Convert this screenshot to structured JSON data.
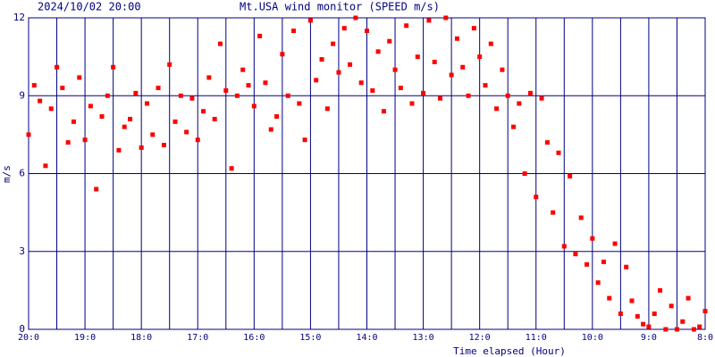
{
  "chart_data": {
    "type": "scatter",
    "date": "2024/10/02 20:00",
    "title": "Mt.USA wind monitor (SPEED m/s)",
    "y_label": "m/s",
    "x_label": "Time elapsed (Hour)",
    "color": "#ff0000",
    "grid": true,
    "xlim": [
      0,
      12
    ],
    "ylim": [
      0,
      12
    ],
    "yticks": [
      0,
      3,
      6,
      9,
      12
    ],
    "xticks": [
      {
        "value": 0,
        "label": "20:0"
      },
      {
        "value": 0.5,
        "label": null
      },
      {
        "value": 1,
        "label": "19:0"
      },
      {
        "value": 1.5,
        "label": null
      },
      {
        "value": 2,
        "label": "18:0"
      },
      {
        "value": 2.5,
        "label": null
      },
      {
        "value": 3,
        "label": "17:0"
      },
      {
        "value": 3.5,
        "label": null
      },
      {
        "value": 4,
        "label": "16:0"
      },
      {
        "value": 4.5,
        "label": null
      },
      {
        "value": 5,
        "label": "15:0"
      },
      {
        "value": 5.5,
        "label": null
      },
      {
        "value": 6,
        "label": "14:0"
      },
      {
        "value": 6.5,
        "label": null
      },
      {
        "value": 7,
        "label": "13:0"
      },
      {
        "value": 7.5,
        "label": null
      },
      {
        "value": 8,
        "label": "12:0"
      },
      {
        "value": 8.5,
        "label": null
      },
      {
        "value": 9,
        "label": "11:0"
      },
      {
        "value": 9.5,
        "label": null
      },
      {
        "value": 10,
        "label": "10:0"
      },
      {
        "value": 10.5,
        "label": null
      },
      {
        "value": 11,
        "label": "9:0"
      },
      {
        "value": 11.5,
        "label": null
      },
      {
        "value": 12,
        "label": "8:0"
      }
    ],
    "x": [
      0.0,
      0.1,
      0.2,
      0.3,
      0.4,
      0.5,
      0.6,
      0.7,
      0.8,
      0.9,
      1.0,
      1.1,
      1.2,
      1.3,
      1.4,
      1.5,
      1.6,
      1.7,
      1.8,
      1.9,
      2.0,
      2.1,
      2.2,
      2.3,
      2.4,
      2.5,
      2.6,
      2.7,
      2.8,
      2.9,
      3.0,
      3.1,
      3.2,
      3.3,
      3.4,
      3.5,
      3.6,
      3.7,
      3.8,
      3.9,
      4.0,
      4.1,
      4.2,
      4.3,
      4.4,
      4.5,
      4.6,
      4.7,
      4.8,
      4.9,
      5.0,
      5.1,
      5.2,
      5.3,
      5.4,
      5.5,
      5.6,
      5.7,
      5.8,
      5.9,
      6.0,
      6.1,
      6.2,
      6.3,
      6.4,
      6.5,
      6.6,
      6.7,
      6.8,
      6.9,
      7.0,
      7.1,
      7.2,
      7.3,
      7.4,
      7.5,
      7.6,
      7.7,
      7.8,
      7.9,
      8.0,
      8.1,
      8.2,
      8.3,
      8.4,
      8.5,
      8.6,
      8.7,
      8.8,
      8.9,
      9.0,
      9.1,
      9.2,
      9.3,
      9.4,
      9.5,
      9.6,
      9.7,
      9.8,
      9.9,
      10.0,
      10.1,
      10.2,
      10.3,
      10.4,
      10.5,
      10.6,
      10.7,
      10.8,
      10.9,
      11.0,
      11.1,
      11.2,
      11.3,
      11.4,
      11.5,
      11.6,
      11.7,
      11.8,
      11.9,
      12.0
    ],
    "values": [
      7.5,
      9.4,
      8.8,
      6.3,
      8.5,
      10.1,
      9.3,
      7.2,
      8.0,
      9.7,
      7.3,
      8.6,
      5.4,
      8.2,
      9.0,
      10.1,
      6.9,
      7.8,
      8.1,
      9.1,
      7.0,
      8.7,
      7.5,
      9.3,
      7.1,
      10.2,
      8.0,
      9.0,
      7.6,
      8.9,
      7.3,
      8.4,
      9.7,
      8.1,
      11.0,
      9.2,
      6.2,
      9.0,
      10.0,
      9.4,
      8.6,
      11.3,
      9.5,
      7.7,
      8.2,
      10.6,
      9.0,
      11.5,
      8.7,
      7.3,
      11.9,
      9.6,
      10.4,
      8.5,
      11.0,
      9.9,
      11.6,
      10.2,
      12.0,
      9.5,
      11.5,
      9.2,
      10.7,
      8.4,
      11.1,
      10.0,
      9.3,
      11.7,
      8.7,
      10.5,
      9.1,
      11.9,
      10.3,
      8.9,
      12.0,
      9.8,
      11.2,
      10.1,
      9.0,
      11.6,
      10.5,
      9.4,
      11.0,
      8.5,
      10.0,
      9.0,
      7.8,
      8.7,
      6.0,
      9.1,
      5.1,
      8.9,
      7.2,
      4.5,
      6.8,
      3.2,
      5.9,
      2.9,
      4.3,
      2.5,
      3.5,
      1.8,
      2.6,
      1.2,
      3.3,
      0.6,
      2.4,
      1.1,
      0.5,
      0.2,
      0.1,
      0.6,
      1.5,
      0,
      0.9,
      0,
      0.3,
      1.2,
      0,
      0.1,
      0.7
    ]
  }
}
